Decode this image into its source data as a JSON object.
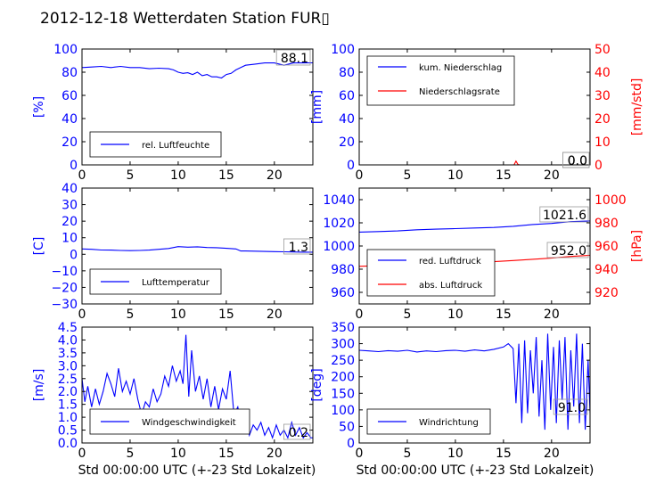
{
  "figure": {
    "title": "2012-12-18 Wetterdaten Station FUR\u0000",
    "title_display": "2012-12-18 Wetterdaten Station FUR",
    "title_glyph": "▯",
    "xlabel": "Std 00:00:00 UTC (+-23 Std Lokalzeit)"
  },
  "colors": {
    "left_axis": "#0000ff",
    "right_axis": "#ff0000",
    "series_blue": "#0000ff",
    "series_red": "#ff0000",
    "frame": "#000000"
  },
  "chart_data": [
    {
      "id": "humidity",
      "type": "line",
      "ylabel": "[%]",
      "xlim": [
        0,
        24
      ],
      "ylim": [
        0,
        100
      ],
      "xticks": [
        "0",
        "5",
        "10",
        "15",
        "20"
      ],
      "yticks": [
        "0",
        "20",
        "40",
        "60",
        "80",
        "100"
      ],
      "legend": {
        "placement": "lower-left",
        "entries": [
          "rel. Luftfeuchte"
        ]
      },
      "last_value_label": "88.1",
      "series": [
        {
          "name": "rel. Luftfeuchte",
          "axis": "left",
          "color": "#0000ff",
          "x": [
            0,
            1,
            2,
            3,
            4,
            5,
            6,
            7,
            8,
            9,
            9.5,
            10,
            10.5,
            11,
            11.5,
            12,
            12.5,
            13,
            13.5,
            14,
            14.5,
            15,
            15.5,
            16,
            16.5,
            17,
            18,
            19,
            20,
            21,
            22,
            23,
            24
          ],
          "y": [
            84,
            84.5,
            85,
            84,
            85,
            84,
            84,
            83,
            83.5,
            83,
            82,
            80,
            79,
            79.5,
            78,
            80,
            77,
            78,
            76,
            76,
            75,
            78,
            79,
            82,
            84,
            86,
            87,
            88,
            88,
            86,
            88,
            88,
            88.1
          ]
        }
      ]
    },
    {
      "id": "precipitation",
      "type": "line",
      "ylabel": "[mm]",
      "ylabel_right": "[mm/std]",
      "xlim": [
        0,
        24
      ],
      "ylim": [
        0,
        100
      ],
      "ylim_right": [
        0,
        50
      ],
      "xticks": [
        "0",
        "5",
        "10",
        "15",
        "20"
      ],
      "yticks": [
        "0",
        "20",
        "40",
        "60",
        "80",
        "100"
      ],
      "yticks_right": [
        "0",
        "10",
        "20",
        "30",
        "40",
        "50"
      ],
      "legend": {
        "placement": "upper-left",
        "entries": [
          "kum. Niederschlag",
          "Niederschlagsrate"
        ]
      },
      "last_value_label": "0.0",
      "last_value_label_2": "0.0",
      "series": [
        {
          "name": "kum. Niederschlag",
          "axis": "left",
          "color": "#0000ff",
          "x": [
            0,
            24
          ],
          "y": [
            0,
            0
          ]
        },
        {
          "name": "Niederschlagsrate",
          "axis": "right",
          "color": "#ff0000",
          "x": [
            0,
            16.1,
            16.3,
            16.5,
            16.7,
            24
          ],
          "y": [
            0,
            0,
            1.6,
            0.2,
            0,
            0
          ]
        }
      ]
    },
    {
      "id": "temperature",
      "type": "line",
      "ylabel": "[C]",
      "xlim": [
        0,
        24
      ],
      "ylim": [
        -30,
        40
      ],
      "xticks": [
        "0",
        "5",
        "10",
        "15",
        "20"
      ],
      "yticks": [
        "−30",
        "−20",
        "−10",
        "0",
        "10",
        "20",
        "30",
        "40"
      ],
      "legend": {
        "placement": "lower-left",
        "entries": [
          "Lufttemperatur"
        ]
      },
      "last_value_label": "1.3",
      "series": [
        {
          "name": "Lufttemperatur",
          "axis": "left",
          "color": "#0000ff",
          "x": [
            0,
            1,
            2,
            3,
            4,
            5,
            6,
            7,
            8,
            9,
            10,
            11,
            12,
            13,
            14,
            15,
            16,
            16.5,
            17,
            18,
            19,
            20,
            21,
            22,
            23,
            24
          ],
          "y": [
            3.2,
            3,
            2.6,
            2.5,
            2.3,
            2.2,
            2.3,
            2.5,
            3,
            3.5,
            4.6,
            4.3,
            4.5,
            4.1,
            4,
            3.6,
            3.2,
            2,
            2,
            1.9,
            1.7,
            1.6,
            1.5,
            1.4,
            1.3,
            1.3
          ]
        }
      ]
    },
    {
      "id": "pressure",
      "type": "line",
      "ylabel_right": "[hPa]",
      "xlim": [
        0,
        24
      ],
      "ylim": [
        950,
        1050
      ],
      "ylim_right": [
        910,
        1010
      ],
      "xticks": [
        "0",
        "5",
        "10",
        "15",
        "20"
      ],
      "yticks": [
        "960",
        "980",
        "1000",
        "1020",
        "1040"
      ],
      "yticks_right": [
        "920",
        "940",
        "960",
        "980",
        "1000"
      ],
      "legend": {
        "placement": "lower-left",
        "entries": [
          "red. Luftdruck",
          "abs. Luftdruck"
        ]
      },
      "last_value_label": "1021.6",
      "last_value_label_2": "952.0",
      "series": [
        {
          "name": "red. Luftdruck",
          "axis": "left",
          "color": "#0000ff",
          "x": [
            0,
            2,
            4,
            6,
            8,
            10,
            12,
            14,
            16,
            18,
            20,
            22,
            24
          ],
          "y": [
            1012,
            1012.5,
            1013,
            1014,
            1014.5,
            1015,
            1015.5,
            1016,
            1017,
            1018.5,
            1019.5,
            1021,
            1021.6
          ]
        },
        {
          "name": "abs. Luftdruck",
          "axis": "right",
          "color": "#ff0000",
          "x": [
            0,
            2,
            4,
            6,
            8,
            10,
            12,
            14,
            16,
            18,
            20,
            22,
            24
          ],
          "y": [
            942.5,
            943,
            943.5,
            944,
            944.5,
            945,
            946,
            946.5,
            947.5,
            948.5,
            949.5,
            951,
            952
          ]
        }
      ]
    },
    {
      "id": "wind_speed",
      "type": "line",
      "ylabel": "[m/s]",
      "xlim": [
        0,
        24
      ],
      "ylim": [
        0,
        4.5
      ],
      "xticks": [
        "0",
        "5",
        "10",
        "15",
        "20"
      ],
      "yticks": [
        "0.0",
        "0.5",
        "1.0",
        "1.5",
        "2.0",
        "2.5",
        "3.0",
        "3.5",
        "4.0",
        "4.5"
      ],
      "legend": {
        "placement": "lower-left",
        "entries": [
          "Windgeschwindigkeit"
        ]
      },
      "last_value_label": "0.2",
      "series": [
        {
          "name": "Windgeschwindigkeit",
          "axis": "left",
          "color": "#0000ff",
          "x": [
            0,
            0.3,
            0.6,
            1,
            1.4,
            1.8,
            2.2,
            2.6,
            3,
            3.4,
            3.8,
            4.2,
            4.6,
            5,
            5.4,
            5.8,
            6.2,
            6.6,
            7,
            7.4,
            7.8,
            8.2,
            8.6,
            9,
            9.4,
            9.8,
            10.2,
            10.5,
            10.8,
            11.1,
            11.4,
            11.8,
            12.2,
            12.6,
            13,
            13.4,
            13.8,
            14.2,
            14.6,
            15,
            15.4,
            15.8,
            16.2,
            16.6,
            17,
            17.4,
            17.8,
            18.2,
            18.6,
            19,
            19.4,
            19.8,
            20.2,
            20.6,
            21,
            21.4,
            21.8,
            22.2,
            22.6,
            23,
            23.4,
            23.8,
            24
          ],
          "y": [
            2.5,
            1.6,
            2.2,
            1.4,
            2.1,
            1.5,
            2.0,
            2.7,
            2.3,
            1.8,
            2.9,
            2.0,
            2.4,
            1.9,
            2.5,
            1.7,
            1.1,
            1.6,
            1.4,
            2.1,
            1.6,
            1.9,
            2.6,
            2.2,
            3.0,
            2.4,
            2.8,
            2.3,
            4.2,
            1.8,
            3.6,
            2.0,
            2.6,
            1.7,
            2.5,
            1.4,
            2.2,
            1.3,
            2.1,
            1.7,
            2.8,
            1.1,
            1.4,
            0.6,
            1.0,
            0.3,
            0.7,
            0.5,
            0.8,
            0.3,
            0.6,
            0.2,
            0.7,
            0.3,
            0.5,
            0.2,
            0.8,
            0.3,
            0.6,
            0.2,
            0.4,
            0.2,
            0.2
          ]
        }
      ]
    },
    {
      "id": "wind_direction",
      "type": "line",
      "ylabel": "[deg]",
      "xlim": [
        0,
        24
      ],
      "ylim": [
        0,
        350
      ],
      "xticks": [
        "0",
        "5",
        "10",
        "15",
        "20"
      ],
      "yticks": [
        "0",
        "50",
        "100",
        "150",
        "200",
        "250",
        "300",
        "350"
      ],
      "legend": {
        "placement": "lower-left",
        "entries": [
          "Windrichtung"
        ]
      },
      "last_value_label": "91.0",
      "series": [
        {
          "name": "Windrichtung",
          "axis": "left",
          "color": "#0000ff",
          "x": [
            0,
            1,
            2,
            3,
            4,
            5,
            6,
            7,
            8,
            9,
            10,
            11,
            12,
            13,
            14,
            15,
            15.5,
            16,
            16.3,
            16.6,
            16.9,
            17.2,
            17.5,
            17.8,
            18.1,
            18.4,
            18.7,
            19,
            19.3,
            19.6,
            19.9,
            20.2,
            20.5,
            20.8,
            21.1,
            21.4,
            21.7,
            22,
            22.3,
            22.6,
            22.9,
            23.2,
            23.5,
            23.8,
            24
          ],
          "y": [
            280,
            278,
            276,
            279,
            277,
            280,
            275,
            278,
            276,
            279,
            280,
            277,
            281,
            278,
            283,
            290,
            300,
            285,
            120,
            300,
            60,
            310,
            90,
            280,
            150,
            320,
            80,
            250,
            40,
            330,
            100,
            290,
            60,
            310,
            130,
            320,
            40,
            280,
            110,
            330,
            60,
            300,
            40,
            250,
            91
          ]
        }
      ]
    }
  ]
}
